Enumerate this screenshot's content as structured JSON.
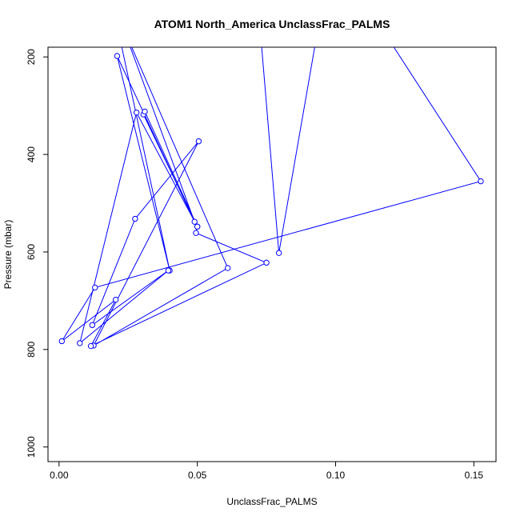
{
  "chart_data": {
    "type": "line",
    "title": "ATOM1 North_America UnclassFrac_PALMS",
    "xlabel": "UnclassFrac_PALMS",
    "ylabel": "Pressure (mbar)",
    "xlim": [
      -0.004,
      0.158
    ],
    "ylim": [
      1030,
      180
    ],
    "y_reversed": true,
    "xticks": [
      0.0,
      0.05,
      0.1,
      0.15
    ],
    "xtick_labels": [
      "0.00",
      "0.05",
      "0.10",
      "0.15"
    ],
    "yticks": [
      200,
      400,
      600,
      800,
      1000
    ],
    "ytick_labels": [
      "200",
      "400",
      "600",
      "800",
      "1000"
    ],
    "grid": false,
    "series": [
      {
        "color": "#0000ff",
        "marker": "open-circle",
        "points": [
          {
            "x": 0.021,
            "y": 135
          },
          {
            "x": 0.04,
            "y": 638
          },
          {
            "x": 0.021,
            "y": 198
          },
          {
            "x": 0.049,
            "y": 538
          },
          {
            "x": 0.023,
            "y": 137
          },
          {
            "x": 0.061,
            "y": 633
          },
          {
            "x": 0.0125,
            "y": 792
          },
          {
            "x": 0.0505,
            "y": 373
          },
          {
            "x": 0.0275,
            "y": 532
          },
          {
            "x": 0.012,
            "y": 750
          },
          {
            "x": 0.0395,
            "y": 638
          },
          {
            "x": 0.0075,
            "y": 787
          },
          {
            "x": 0.028,
            "y": 314
          },
          {
            "x": 0.05,
            "y": 548
          },
          {
            "x": 0.0305,
            "y": 318
          },
          {
            "x": 0.031,
            "y": 312
          },
          {
            "x": 0.05,
            "y": 548
          },
          {
            "x": 0.0495,
            "y": 561
          },
          {
            "x": 0.075,
            "y": 622
          },
          {
            "x": 0.0115,
            "y": 793
          },
          {
            "x": 0.0205,
            "y": 698
          },
          {
            "x": 0.001,
            "y": 783
          },
          {
            "x": 0.013,
            "y": 673
          },
          {
            "x": 0.1525,
            "y": 455
          },
          {
            "x": 0.119,
            "y": 162
          },
          {
            "x": 0.093,
            "y": 162
          },
          {
            "x": 0.0795,
            "y": 602
          },
          {
            "x": 0.073,
            "y": 162
          }
        ]
      }
    ]
  }
}
